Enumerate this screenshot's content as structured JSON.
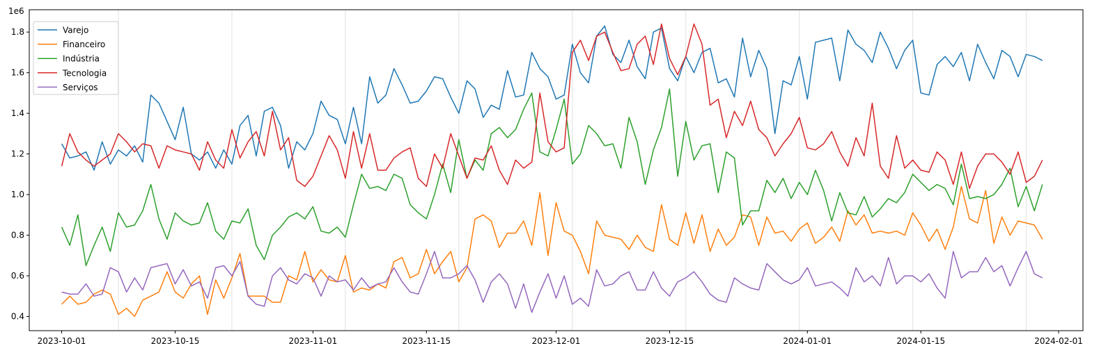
{
  "chart_data": {
    "type": "line",
    "title": "",
    "xlabel": "",
    "ylabel": "",
    "y_offset_label": "1e6",
    "xlim": [
      "2023-09-27",
      "2024-02-04"
    ],
    "ylim": [
      0.33,
      1.91
    ],
    "y_scale_factor": 1000000,
    "grid": "vertical faint lines",
    "legend_position": "top-left",
    "x_ticks": [
      "2023-10-01",
      "2023-10-15",
      "2023-11-01",
      "2023-11-15",
      "2023-12-01",
      "2023-12-15",
      "2024-01-01",
      "2024-01-15",
      "2024-02-01"
    ],
    "y_ticks": [
      0.4,
      0.6,
      0.8,
      1.0,
      1.2,
      1.4,
      1.6,
      1.8
    ],
    "y_tick_labels": [
      "0.4",
      "0.6",
      "0.8",
      "1.0",
      "1.2",
      "1.4",
      "1.6",
      "1.8"
    ],
    "vertical_gridlines": [
      "2023-10-08",
      "2023-10-22",
      "2023-11-05",
      "2023-11-19",
      "2023-12-03",
      "2023-12-17",
      "2023-12-31",
      "2024-01-14",
      "2024-01-28"
    ],
    "x_start": "2023-10-01",
    "x_step_days": 1,
    "series": [
      {
        "name": "Varejo",
        "color": "#1f77b4",
        "values": [
          1.25,
          1.18,
          1.19,
          1.21,
          1.12,
          1.26,
          1.15,
          1.22,
          1.19,
          1.24,
          1.16,
          1.49,
          1.45,
          1.36,
          1.27,
          1.43,
          1.2,
          1.17,
          1.21,
          1.13,
          1.22,
          1.15,
          1.34,
          1.39,
          1.19,
          1.41,
          1.43,
          1.34,
          1.13,
          1.26,
          1.22,
          1.3,
          1.46,
          1.39,
          1.37,
          1.25,
          1.43,
          1.25,
          1.58,
          1.45,
          1.49,
          1.62,
          1.54,
          1.45,
          1.46,
          1.51,
          1.58,
          1.57,
          1.48,
          1.4,
          1.56,
          1.52,
          1.38,
          1.44,
          1.42,
          1.61,
          1.48,
          1.49,
          1.7,
          1.62,
          1.58,
          1.47,
          1.49,
          1.74,
          1.6,
          1.55,
          1.78,
          1.83,
          1.69,
          1.65,
          1.76,
          1.63,
          1.57,
          1.8,
          1.82,
          1.62,
          1.56,
          1.68,
          1.6,
          1.7,
          1.72,
          1.55,
          1.57,
          1.48,
          1.77,
          1.58,
          1.71,
          1.62,
          1.3,
          1.56,
          1.54,
          1.68,
          1.47,
          1.75,
          1.76,
          1.77,
          1.56,
          1.81,
          1.74,
          1.71,
          1.65,
          1.8,
          1.72,
          1.62,
          1.71,
          1.76,
          1.5,
          1.49,
          1.64,
          1.68,
          1.63,
          1.7,
          1.56,
          1.74,
          1.65,
          1.57,
          1.71,
          1.68,
          1.58,
          1.69,
          1.68,
          1.66
        ]
      },
      {
        "name": "Financeiro",
        "color": "#ff7f0e",
        "values": [
          0.46,
          0.5,
          0.46,
          0.47,
          0.51,
          0.53,
          0.51,
          0.41,
          0.44,
          0.4,
          0.48,
          0.5,
          0.52,
          0.62,
          0.52,
          0.49,
          0.56,
          0.6,
          0.41,
          0.58,
          0.49,
          0.59,
          0.71,
          0.5,
          0.5,
          0.5,
          0.47,
          0.47,
          0.6,
          0.58,
          0.72,
          0.57,
          0.63,
          0.58,
          0.57,
          0.7,
          0.52,
          0.54,
          0.53,
          0.56,
          0.54,
          0.67,
          0.69,
          0.59,
          0.61,
          0.73,
          0.61,
          0.67,
          0.72,
          0.57,
          0.64,
          0.88,
          0.9,
          0.87,
          0.74,
          0.81,
          0.81,
          0.87,
          0.75,
          1.01,
          0.7,
          0.96,
          0.82,
          0.8,
          0.72,
          0.61,
          0.87,
          0.8,
          0.79,
          0.78,
          0.73,
          0.8,
          0.74,
          0.72,
          0.95,
          0.78,
          0.75,
          0.91,
          0.76,
          0.9,
          0.72,
          0.83,
          0.75,
          0.79,
          0.9,
          0.89,
          0.75,
          0.89,
          0.81,
          0.82,
          0.77,
          0.83,
          0.86,
          0.76,
          0.79,
          0.84,
          0.77,
          0.92,
          0.85,
          0.9,
          0.81,
          0.82,
          0.81,
          0.82,
          0.8,
          0.91,
          0.85,
          0.77,
          0.83,
          0.73,
          0.84,
          1.04,
          0.88,
          0.86,
          1.02,
          0.76,
          0.89,
          0.8,
          0.87,
          0.86,
          0.85,
          0.78
        ]
      },
      {
        "name": "Indústria",
        "color": "#2ca02c",
        "values": [
          0.84,
          0.75,
          0.9,
          0.65,
          0.75,
          0.84,
          0.72,
          0.91,
          0.84,
          0.85,
          0.92,
          1.05,
          0.88,
          0.78,
          0.91,
          0.87,
          0.85,
          0.86,
          0.96,
          0.82,
          0.78,
          0.87,
          0.86,
          0.93,
          0.75,
          0.68,
          0.8,
          0.84,
          0.89,
          0.91,
          0.88,
          0.94,
          0.82,
          0.81,
          0.84,
          0.79,
          0.95,
          1.1,
          1.03,
          1.04,
          1.02,
          1.1,
          1.08,
          0.95,
          0.91,
          0.88,
          1.0,
          1.15,
          1.01,
          1.27,
          1.08,
          1.17,
          1.12,
          1.3,
          1.33,
          1.28,
          1.32,
          1.42,
          1.5,
          1.21,
          1.19,
          1.32,
          1.47,
          1.15,
          1.2,
          1.34,
          1.3,
          1.24,
          1.25,
          1.13,
          1.38,
          1.26,
          1.05,
          1.22,
          1.33,
          1.52,
          1.09,
          1.36,
          1.17,
          1.24,
          1.25,
          1.01,
          1.21,
          1.18,
          0.85,
          0.92,
          0.92,
          1.07,
          1.01,
          1.08,
          0.98,
          1.06,
          1.0,
          1.12,
          1.02,
          0.87,
          1.01,
          0.91,
          0.9,
          0.99,
          0.89,
          0.93,
          0.98,
          0.96,
          1.01,
          1.1,
          1.06,
          1.02,
          1.05,
          1.03,
          0.95,
          1.15,
          0.98,
          0.99,
          0.98,
          1.0,
          1.05,
          1.13,
          0.94,
          1.04,
          0.92,
          1.05
        ]
      },
      {
        "name": "Tecnologia",
        "color": "#d62728",
        "values": [
          1.14,
          1.3,
          1.21,
          1.17,
          1.14,
          1.17,
          1.2,
          1.3,
          1.26,
          1.21,
          1.25,
          1.24,
          1.13,
          1.24,
          1.22,
          1.21,
          1.2,
          1.12,
          1.26,
          1.17,
          1.13,
          1.32,
          1.18,
          1.26,
          1.31,
          1.19,
          1.41,
          1.22,
          1.28,
          1.07,
          1.04,
          1.09,
          1.19,
          1.29,
          1.22,
          1.08,
          1.31,
          1.13,
          1.3,
          1.12,
          1.12,
          1.18,
          1.21,
          1.23,
          1.08,
          1.04,
          1.2,
          1.13,
          1.3,
          1.19,
          1.08,
          1.18,
          1.17,
          1.24,
          1.12,
          1.05,
          1.17,
          1.13,
          1.16,
          1.5,
          1.26,
          1.21,
          1.23,
          1.7,
          1.76,
          1.66,
          1.78,
          1.8,
          1.7,
          1.61,
          1.62,
          1.74,
          1.78,
          1.64,
          1.84,
          1.67,
          1.59,
          1.68,
          1.84,
          1.74,
          1.44,
          1.47,
          1.28,
          1.41,
          1.34,
          1.46,
          1.32,
          1.28,
          1.19,
          1.25,
          1.3,
          1.38,
          1.23,
          1.22,
          1.25,
          1.31,
          1.21,
          1.14,
          1.28,
          1.19,
          1.45,
          1.14,
          1.08,
          1.29,
          1.13,
          1.17,
          1.12,
          1.11,
          1.21,
          1.17,
          1.05,
          1.21,
          1.03,
          1.14,
          1.2,
          1.2,
          1.16,
          1.1,
          1.21,
          1.06,
          1.09,
          1.17
        ]
      },
      {
        "name": "Serviços",
        "color": "#9467bd",
        "values": [
          0.52,
          0.51,
          0.51,
          0.56,
          0.5,
          0.51,
          0.64,
          0.62,
          0.52,
          0.59,
          0.53,
          0.64,
          0.65,
          0.66,
          0.56,
          0.63,
          0.55,
          0.57,
          0.49,
          0.64,
          0.65,
          0.6,
          0.67,
          0.5,
          0.46,
          0.45,
          0.6,
          0.64,
          0.58,
          0.56,
          0.61,
          0.59,
          0.5,
          0.6,
          0.57,
          0.58,
          0.53,
          0.59,
          0.54,
          0.56,
          0.57,
          0.64,
          0.57,
          0.52,
          0.51,
          0.61,
          0.72,
          0.59,
          0.59,
          0.61,
          0.65,
          0.58,
          0.47,
          0.57,
          0.61,
          0.56,
          0.44,
          0.56,
          0.42,
          0.52,
          0.61,
          0.49,
          0.6,
          0.46,
          0.49,
          0.45,
          0.63,
          0.55,
          0.56,
          0.6,
          0.62,
          0.53,
          0.53,
          0.62,
          0.54,
          0.5,
          0.57,
          0.59,
          0.62,
          0.57,
          0.51,
          0.48,
          0.47,
          0.59,
          0.56,
          0.54,
          0.53,
          0.66,
          0.62,
          0.58,
          0.56,
          0.58,
          0.64,
          0.55,
          0.56,
          0.57,
          0.54,
          0.5,
          0.64,
          0.57,
          0.6,
          0.55,
          0.69,
          0.56,
          0.6,
          0.6,
          0.57,
          0.61,
          0.54,
          0.49,
          0.72,
          0.59,
          0.62,
          0.62,
          0.69,
          0.62,
          0.65,
          0.55,
          0.64,
          0.72,
          0.61,
          0.59
        ]
      }
    ]
  }
}
